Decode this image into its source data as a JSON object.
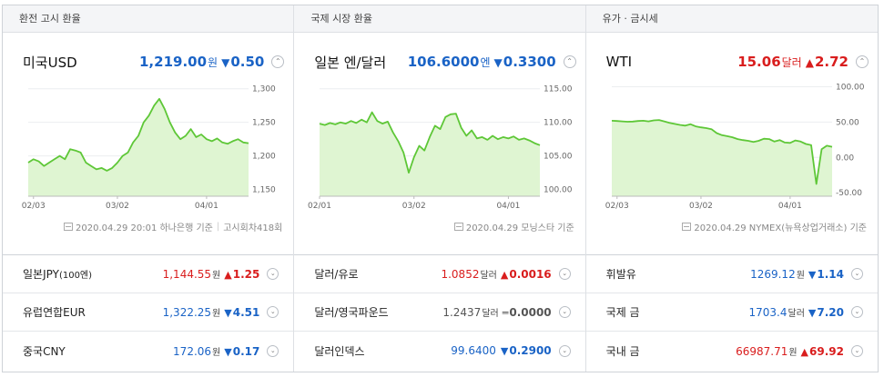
{
  "colors": {
    "up": "#d91d1d",
    "down": "#1a63c6",
    "line": "#5ec737",
    "fill": "#dff5d2"
  },
  "columns": [
    {
      "header": "환전 고시 환율",
      "name": "미국USD",
      "price": "1,219.00",
      "unit": "원",
      "direction": "down",
      "arrow": "▼",
      "change": "0.50",
      "expand": "⌃",
      "source_left": "2020.04.29 20:01 하나은행 기준",
      "source_right": "고시회차418회",
      "chart_data": {
        "type": "area",
        "yticks": [
          "1,300",
          "1,250",
          "1,200",
          "1,150"
        ],
        "ylim": [
          1140,
          1305
        ],
        "xticks": [
          "02/03",
          "03/02",
          "04/01"
        ],
        "x_tick_index": [
          1,
          17,
          34
        ],
        "values": [
          1190,
          1195,
          1192,
          1185,
          1190,
          1195,
          1200,
          1195,
          1210,
          1208,
          1205,
          1190,
          1185,
          1180,
          1182,
          1178,
          1182,
          1190,
          1200,
          1205,
          1220,
          1230,
          1250,
          1260,
          1275,
          1285,
          1270,
          1250,
          1235,
          1225,
          1230,
          1240,
          1228,
          1232,
          1225,
          1222,
          1226,
          1220,
          1218,
          1222,
          1225,
          1220,
          1219
        ]
      }
    },
    {
      "header": "국제 시장 환율",
      "name": "일본 엔/달러",
      "price": "106.6000",
      "unit": "엔",
      "direction": "down",
      "arrow": "▼",
      "change": "0.3300",
      "expand": "⌃",
      "source_left": "2020.04.29 모닝스타 기준",
      "chart_data": {
        "type": "area",
        "yticks": [
          "115.00",
          "110.00",
          "105.00",
          "100.00"
        ],
        "ylim": [
          99,
          115.5
        ],
        "xticks": [
          "02/01",
          "03/02",
          "04/01"
        ],
        "x_tick_index": [
          0,
          18,
          36
        ],
        "values": [
          109.8,
          109.6,
          109.9,
          109.7,
          110.0,
          109.8,
          110.2,
          109.9,
          110.4,
          110.0,
          111.5,
          110.2,
          109.8,
          110.1,
          108.5,
          107.2,
          105.5,
          102.5,
          104.8,
          106.5,
          105.8,
          107.8,
          109.5,
          109.0,
          110.8,
          111.2,
          111.3,
          109.2,
          108.0,
          108.8,
          107.6,
          107.8,
          107.4,
          108.0,
          107.5,
          107.8,
          107.6,
          107.9,
          107.4,
          107.6,
          107.3,
          106.9,
          106.6
        ]
      }
    },
    {
      "header": "유가 · 금시세",
      "name": "WTI",
      "price": "15.06",
      "unit": "달러",
      "direction": "up",
      "arrow": "▲",
      "change": "2.72",
      "expand": "⌃",
      "source_left": "2020.04.29 NYMEX(뉴욕상업거래소) 기준",
      "chart_data": {
        "type": "area",
        "yticks": [
          "100.00",
          "50.00",
          "0.00",
          "-50.00"
        ],
        "ylim": [
          -55,
          102
        ],
        "xticks": [
          "02/03",
          "03/02",
          "04/01"
        ],
        "x_tick_index": [
          1,
          17,
          34
        ],
        "values": [
          52.0,
          51.5,
          51.0,
          50.5,
          50.8,
          51.5,
          52.0,
          51.0,
          52.5,
          53.0,
          51.0,
          49.0,
          47.5,
          46.0,
          45.0,
          47.0,
          44.0,
          42.5,
          41.5,
          40.0,
          34.5,
          31.5,
          30.0,
          28.5,
          26.0,
          24.5,
          23.5,
          22.0,
          23.5,
          26.5,
          26.0,
          22.5,
          24.5,
          21.0,
          20.5,
          24.0,
          22.5,
          19.0,
          17.5,
          -37.6,
          11.5,
          16.5,
          15.06
        ]
      }
    }
  ],
  "rows": [
    [
      {
        "name": "일본JPY",
        "name_small": "(100엔)",
        "price": "1,144.55",
        "unit": "원",
        "direction": "up",
        "arrow": "▲",
        "change": "1.25",
        "expand": "⌄"
      },
      {
        "name": "유럽연합EUR",
        "name_small": "",
        "price": "1,322.25",
        "unit": "원",
        "direction": "down",
        "arrow": "▼",
        "change": "4.51",
        "expand": "⌄"
      },
      {
        "name": "중국CNY",
        "name_small": "",
        "price": "172.06",
        "unit": "원",
        "direction": "down",
        "arrow": "▼",
        "change": "0.17",
        "expand": "⌄"
      }
    ],
    [
      {
        "name": "달러/유로",
        "name_small": "",
        "price": "1.0852",
        "unit": "달러",
        "direction": "up",
        "arrow": "▲",
        "change": "0.0016",
        "expand": "⌄"
      },
      {
        "name": "달러/영국파운드",
        "name_small": "",
        "price": "1.2437",
        "unit": "달러",
        "direction": "flat",
        "arrow": "═",
        "change": "0.0000",
        "expand": "⌄"
      },
      {
        "name": "달러인덱스",
        "name_small": "",
        "price": "99.6400",
        "unit": "",
        "direction": "down",
        "arrow": "▼",
        "change": "0.2900",
        "expand": "⌄"
      }
    ],
    [
      {
        "name": "휘발유",
        "name_small": "",
        "price": "1269.12",
        "unit": "원",
        "direction": "down",
        "arrow": "▼",
        "change": "1.14",
        "expand": "⌄"
      },
      {
        "name": "국제 금",
        "name_small": "",
        "price": "1703.4",
        "unit": "달러",
        "direction": "down",
        "arrow": "▼",
        "change": "7.20",
        "expand": "⌄"
      },
      {
        "name": "국내 금",
        "name_small": "",
        "price": "66987.71",
        "unit": "원",
        "direction": "up",
        "arrow": "▲",
        "change": "69.92",
        "expand": "⌄"
      }
    ]
  ]
}
